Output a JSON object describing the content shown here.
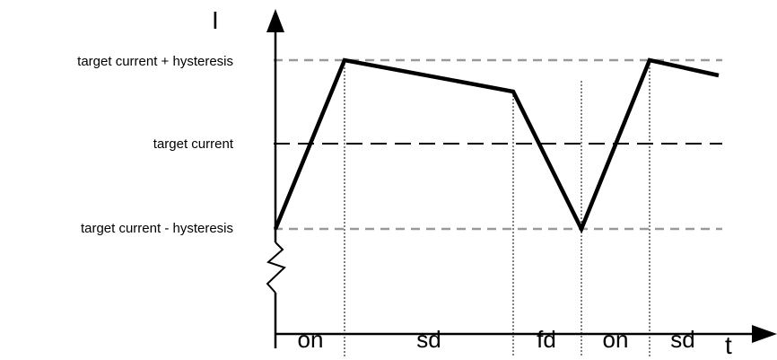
{
  "diagram": {
    "y_axis_label": "I",
    "x_axis_label": "t",
    "levels": [
      {
        "id": "upper",
        "label": "target current + hysteresis",
        "style": "grey-dashed"
      },
      {
        "id": "target",
        "label": "target current",
        "style": "black-dashed"
      },
      {
        "id": "lower",
        "label": "target current - hysteresis",
        "style": "grey-dashed"
      }
    ],
    "phases": [
      "on",
      "sd",
      "fd",
      "on",
      "sd"
    ],
    "colors": {
      "waveform": "#000000",
      "hysteresis_lines": "#999999",
      "target_line": "#000000"
    }
  }
}
